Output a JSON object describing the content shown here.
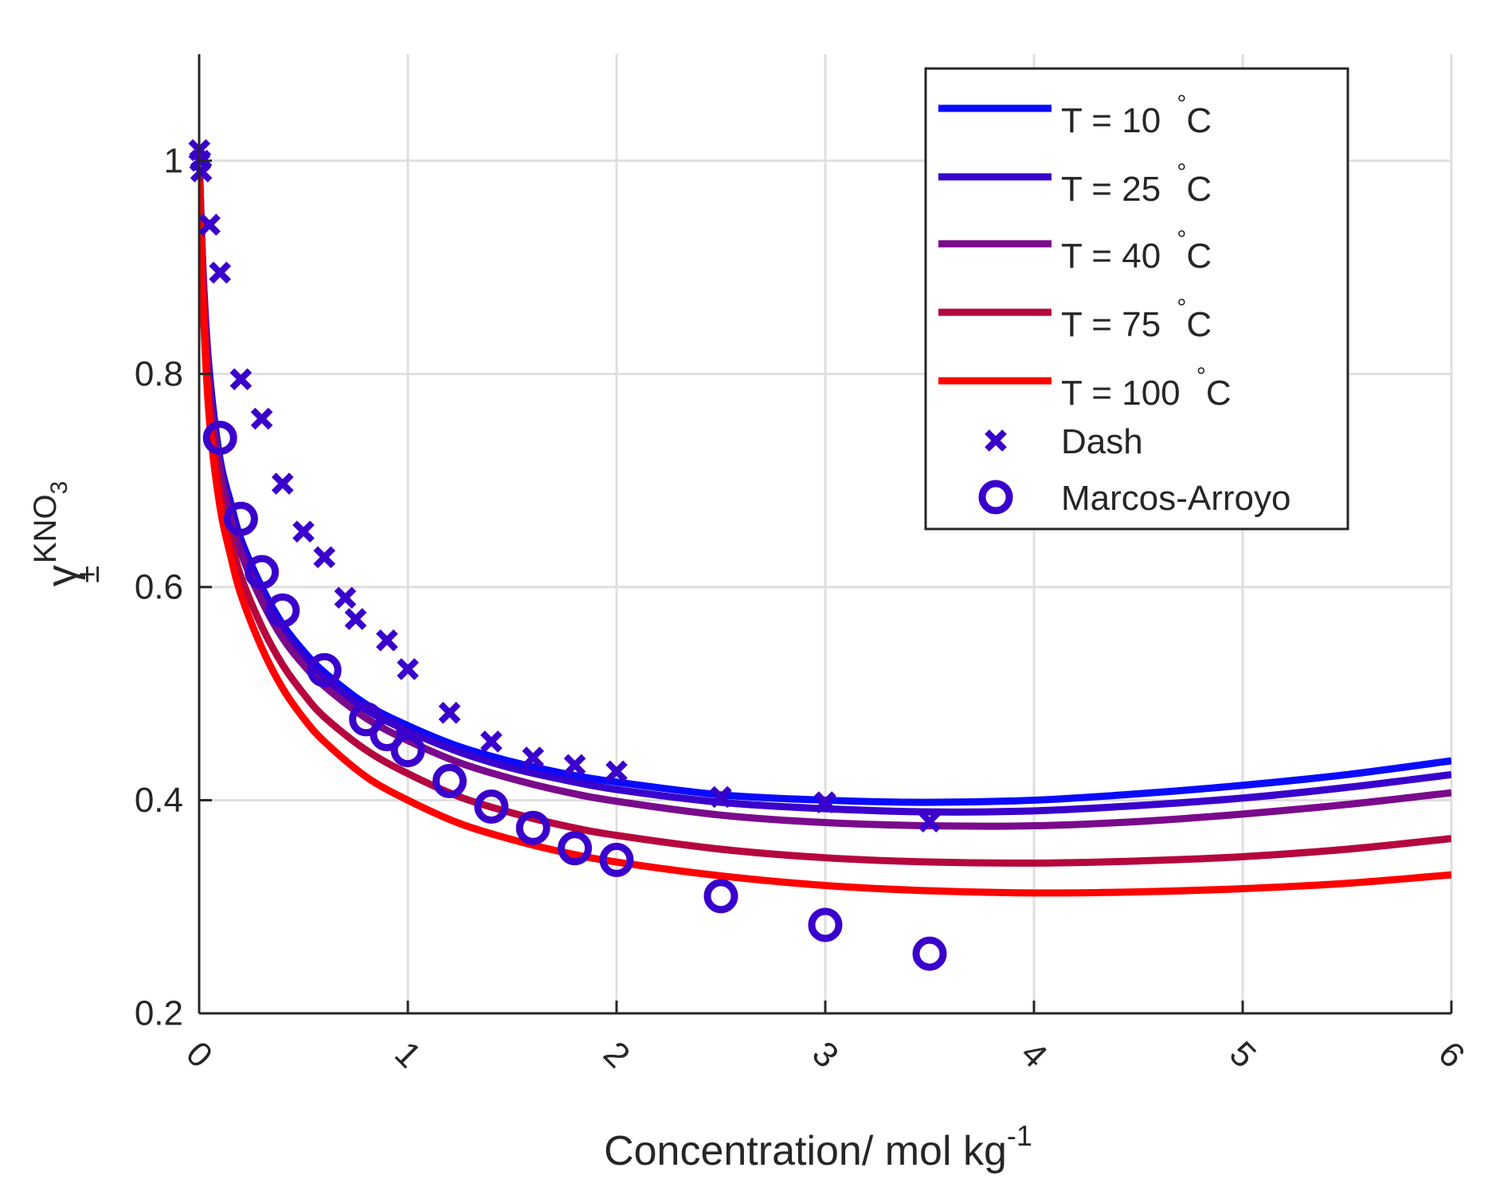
{
  "chart_data": {
    "type": "line",
    "xlabel": "Concentration/ mol kg",
    "xlabel_sup": "-1",
    "ylabel_base": "γ",
    "ylabel_sup": "KNO",
    "ylabel_sup_sub": "3",
    "ylabel_sub": "±",
    "xlim": [
      0,
      6
    ],
    "ylim": [
      0.2,
      1.1
    ],
    "xticks": [
      0,
      1,
      2,
      3,
      4,
      5,
      6
    ],
    "xtick_labels": [
      "0",
      "1",
      "2",
      "3",
      "4",
      "5",
      "6"
    ],
    "yticks": [
      0.2,
      0.4,
      0.6,
      0.8,
      1.0
    ],
    "ytick_labels": [
      "0.2",
      "0.4",
      "0.6",
      "0.8",
      "1"
    ],
    "grid": true,
    "legend_position": "top-right",
    "series": [
      {
        "name": "T = 10 °C",
        "label_main": "T = 10",
        "label_unit": "°C",
        "color": "#0a0aff",
        "x": [
          0.002,
          0.02,
          0.05,
          0.1,
          0.15,
          0.2,
          0.3,
          0.4,
          0.5,
          0.6,
          0.8,
          1.0,
          1.25,
          1.5,
          1.75,
          2.0,
          2.5,
          3.0,
          3.5,
          4.0,
          4.5,
          5.0,
          5.5,
          6.0
        ],
        "y": [
          0.99,
          0.89,
          0.8,
          0.72,
          0.68,
          0.645,
          0.6,
          0.565,
          0.54,
          0.52,
          0.49,
          0.47,
          0.45,
          0.436,
          0.425,
          0.417,
          0.405,
          0.4,
          0.398,
          0.4,
          0.406,
          0.414,
          0.424,
          0.437
        ]
      },
      {
        "name": "T = 25 °C",
        "label_main": "T = 25",
        "label_unit": "°C",
        "color": "#3a00cc",
        "x": [
          0.002,
          0.02,
          0.05,
          0.1,
          0.15,
          0.2,
          0.3,
          0.4,
          0.5,
          0.6,
          0.8,
          1.0,
          1.25,
          1.5,
          1.75,
          2.0,
          2.5,
          3.0,
          3.5,
          4.0,
          4.5,
          5.0,
          5.5,
          6.0
        ],
        "y": [
          0.99,
          0.89,
          0.79,
          0.715,
          0.675,
          0.64,
          0.595,
          0.56,
          0.535,
          0.515,
          0.485,
          0.465,
          0.445,
          0.43,
          0.419,
          0.41,
          0.398,
          0.392,
          0.389,
          0.39,
          0.395,
          0.402,
          0.412,
          0.424
        ]
      },
      {
        "name": "T = 40 °C",
        "label_main": "T = 40",
        "label_unit": "°C",
        "color": "#7a0a8c",
        "x": [
          0.002,
          0.02,
          0.05,
          0.1,
          0.15,
          0.2,
          0.3,
          0.4,
          0.5,
          0.6,
          0.8,
          1.0,
          1.25,
          1.5,
          1.75,
          2.0,
          2.5,
          3.0,
          3.5,
          4.0,
          4.5,
          5.0,
          5.5,
          6.0
        ],
        "y": [
          0.99,
          0.885,
          0.785,
          0.71,
          0.665,
          0.632,
          0.587,
          0.552,
          0.527,
          0.507,
          0.477,
          0.456,
          0.435,
          0.42,
          0.408,
          0.399,
          0.386,
          0.379,
          0.376,
          0.376,
          0.38,
          0.387,
          0.396,
          0.407
        ]
      },
      {
        "name": "T = 75 °C",
        "label_main": "T = 75",
        "label_unit": "°C",
        "color": "#b5073e",
        "x": [
          0.002,
          0.02,
          0.05,
          0.1,
          0.15,
          0.2,
          0.3,
          0.4,
          0.5,
          0.6,
          0.8,
          1.0,
          1.25,
          1.5,
          1.75,
          2.0,
          2.5,
          3.0,
          3.5,
          4.0,
          4.5,
          5.0,
          5.5,
          6.0
        ],
        "y": [
          0.985,
          0.87,
          0.765,
          0.69,
          0.645,
          0.61,
          0.563,
          0.527,
          0.5,
          0.478,
          0.447,
          0.425,
          0.403,
          0.388,
          0.376,
          0.367,
          0.354,
          0.346,
          0.342,
          0.341,
          0.343,
          0.347,
          0.354,
          0.364
        ]
      },
      {
        "name": "T = 100 °C",
        "label_main": "T = 100",
        "label_unit": "°C",
        "color": "#ff0000",
        "x": [
          0.002,
          0.02,
          0.05,
          0.1,
          0.15,
          0.2,
          0.3,
          0.4,
          0.5,
          0.6,
          0.8,
          1.0,
          1.25,
          1.5,
          1.75,
          2.0,
          2.5,
          3.0,
          3.5,
          4.0,
          4.5,
          5.0,
          5.5,
          6.0
        ],
        "y": [
          0.98,
          0.86,
          0.755,
          0.675,
          0.63,
          0.593,
          0.543,
          0.505,
          0.477,
          0.455,
          0.422,
          0.4,
          0.378,
          0.363,
          0.351,
          0.342,
          0.329,
          0.32,
          0.315,
          0.313,
          0.314,
          0.317,
          0.322,
          0.33
        ]
      },
      {
        "name": "Dash",
        "marker": "x",
        "color": "#3a00cc",
        "x": [
          0.001,
          0.005,
          0.01,
          0.05,
          0.1,
          0.2,
          0.3,
          0.4,
          0.5,
          0.6,
          0.7,
          0.75,
          0.9,
          1.0,
          1.2,
          1.4,
          1.6,
          1.8,
          2.0,
          2.5,
          3.0,
          3.5
        ],
        "y": [
          1.01,
          1.0,
          0.99,
          0.94,
          0.895,
          0.795,
          0.758,
          0.697,
          0.652,
          0.628,
          0.59,
          0.57,
          0.55,
          0.523,
          0.482,
          0.455,
          0.44,
          0.433,
          0.427,
          0.403,
          0.398,
          0.38
        ]
      },
      {
        "name": "Marcos-Arroyo",
        "marker": "o",
        "color": "#3a00cc",
        "x": [
          0.1,
          0.2,
          0.3,
          0.4,
          0.6,
          0.8,
          0.9,
          1.0,
          1.2,
          1.4,
          1.6,
          1.8,
          2.0,
          2.5,
          3.0,
          3.5
        ],
        "y": [
          0.74,
          0.664,
          0.614,
          0.578,
          0.522,
          0.476,
          0.462,
          0.447,
          0.418,
          0.394,
          0.374,
          0.355,
          0.344,
          0.31,
          0.283,
          0.256
        ]
      }
    ]
  }
}
